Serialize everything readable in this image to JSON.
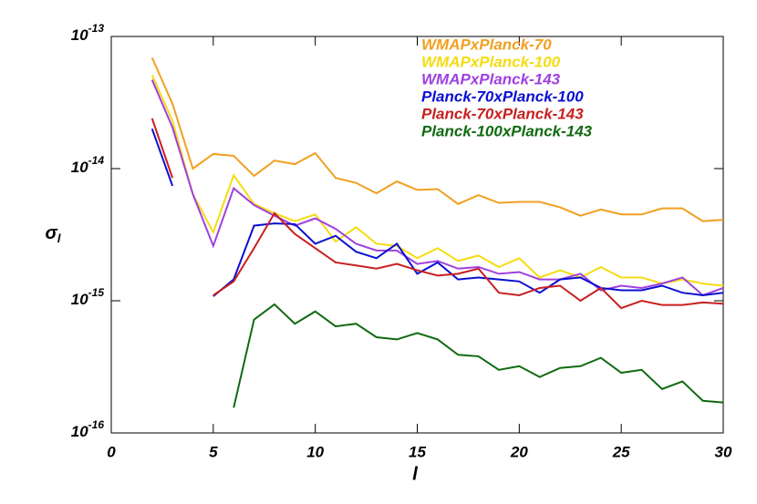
{
  "chart_data": {
    "type": "line",
    "xlabel": "l",
    "ylabel": "σ",
    "ylabel_sub": "l",
    "x": [
      2,
      3,
      4,
      5,
      6,
      7,
      8,
      9,
      10,
      11,
      12,
      13,
      14,
      15,
      16,
      17,
      18,
      19,
      20,
      21,
      22,
      23,
      24,
      25,
      26,
      27,
      28,
      29,
      30
    ],
    "xlim": [
      0,
      30
    ],
    "xticks": [
      0,
      5,
      10,
      15,
      20,
      25,
      30
    ],
    "ylim": [
      1e-16,
      1e-13
    ],
    "log_y": true,
    "yticks": [
      {
        "value": 1e-16,
        "label": "10",
        "exponent": "-16"
      },
      {
        "value": 1e-15,
        "label": "10",
        "exponent": "-15"
      },
      {
        "value": 1e-14,
        "label": "10",
        "exponent": "-14"
      },
      {
        "value": 1e-13,
        "label": "10",
        "exponent": "-13"
      }
    ],
    "legend": "upper right",
    "series": [
      {
        "name": "WMAPxPlanck-70",
        "color": "#f0a020",
        "values": [
          6.9e-14,
          3.1e-14,
          1e-14,
          1.29e-14,
          1.25e-14,
          8.8e-15,
          1.15e-14,
          1.08e-14,
          1.31e-14,
          8.5e-15,
          7.8e-15,
          6.5e-15,
          8e-15,
          6.9e-15,
          7e-15,
          5.4e-15,
          6.3e-15,
          5.5e-15,
          5.6e-15,
          5.6e-15,
          5.1e-15,
          4.4e-15,
          4.9e-15,
          4.5e-15,
          4.5e-15,
          5e-15,
          5e-15,
          4e-15,
          4.1e-15
        ]
      },
      {
        "name": "WMAPxPlanck-100",
        "color": "#f5dc10",
        "values": [
          5.1e-14,
          2.3e-14,
          6.4e-15,
          3.3e-15,
          8.9e-15,
          5.4e-15,
          4.6e-15,
          4e-15,
          4.5e-15,
          2.8e-15,
          3.6e-15,
          2.7e-15,
          2.6e-15,
          2.1e-15,
          2.5e-15,
          2e-15,
          2.2e-15,
          1.8e-15,
          2.1e-15,
          1.5e-15,
          1.7e-15,
          1.5e-15,
          1.8e-15,
          1.5e-15,
          1.5e-15,
          1.35e-15,
          1.45e-15,
          1.35e-15,
          1.3e-15
        ]
      },
      {
        "name": "WMAPxPlanck-143",
        "color": "#a040e0",
        "values": [
          4.7e-14,
          2.05e-14,
          6.4e-15,
          2.6e-15,
          7.1e-15,
          5.3e-15,
          4.4e-15,
          3.7e-15,
          4.2e-15,
          3.5e-15,
          2.7e-15,
          2.4e-15,
          2.4e-15,
          1.9e-15,
          2e-15,
          1.75e-15,
          1.8e-15,
          1.6e-15,
          1.65e-15,
          1.45e-15,
          1.45e-15,
          1.6e-15,
          1.2e-15,
          1.3e-15,
          1.25e-15,
          1.35e-15,
          1.5e-15,
          1.1e-15,
          1.25e-15
        ]
      },
      {
        "name": "Planck-70xPlanck-100",
        "color": "#0a10d0",
        "values": [
          2e-14,
          7.4e-15,
          null,
          1.08e-15,
          1.45e-15,
          3.7e-15,
          3.85e-15,
          3.8e-15,
          2.7e-15,
          3.1e-15,
          2.35e-15,
          2.1e-15,
          2.7e-15,
          1.6e-15,
          1.95e-15,
          1.45e-15,
          1.5e-15,
          1.45e-15,
          1.4e-15,
          1.15e-15,
          1.45e-15,
          1.5e-15,
          1.25e-15,
          1.2e-15,
          1.2e-15,
          1.3e-15,
          1.15e-15,
          1.1e-15,
          1.15e-15
        ]
      },
      {
        "name": "Planck-70xPlanck-143",
        "color": "#c82020",
        "values": [
          2.4e-14,
          8.5e-15,
          null,
          1.1e-15,
          1.4e-15,
          2.5e-15,
          4.6e-15,
          3.2e-15,
          2.5e-15,
          1.95e-15,
          1.85e-15,
          1.75e-15,
          1.9e-15,
          1.7e-15,
          1.55e-15,
          1.6e-15,
          1.75e-15,
          1.15e-15,
          1.1e-15,
          1.25e-15,
          1.3e-15,
          1e-15,
          1.25e-15,
          8.8e-16,
          1e-15,
          9.3e-16,
          9.3e-16,
          9.7e-16,
          9.5e-16
        ]
      },
      {
        "name": "Planck-100xPlanck-143",
        "color": "#106a10",
        "values": [
          null,
          null,
          null,
          null,
          1.55e-16,
          7.2e-16,
          9.4e-16,
          6.7e-16,
          8.3e-16,
          6.4e-16,
          6.7e-16,
          5.3e-16,
          5.1e-16,
          5.7e-16,
          5.1e-16,
          3.9e-16,
          3.8e-16,
          3e-16,
          3.2e-16,
          2.65e-16,
          3.1e-16,
          3.2e-16,
          3.7e-16,
          2.85e-16,
          3e-16,
          2.15e-16,
          2.45e-16,
          1.75e-16,
          1.7e-16
        ]
      }
    ]
  }
}
